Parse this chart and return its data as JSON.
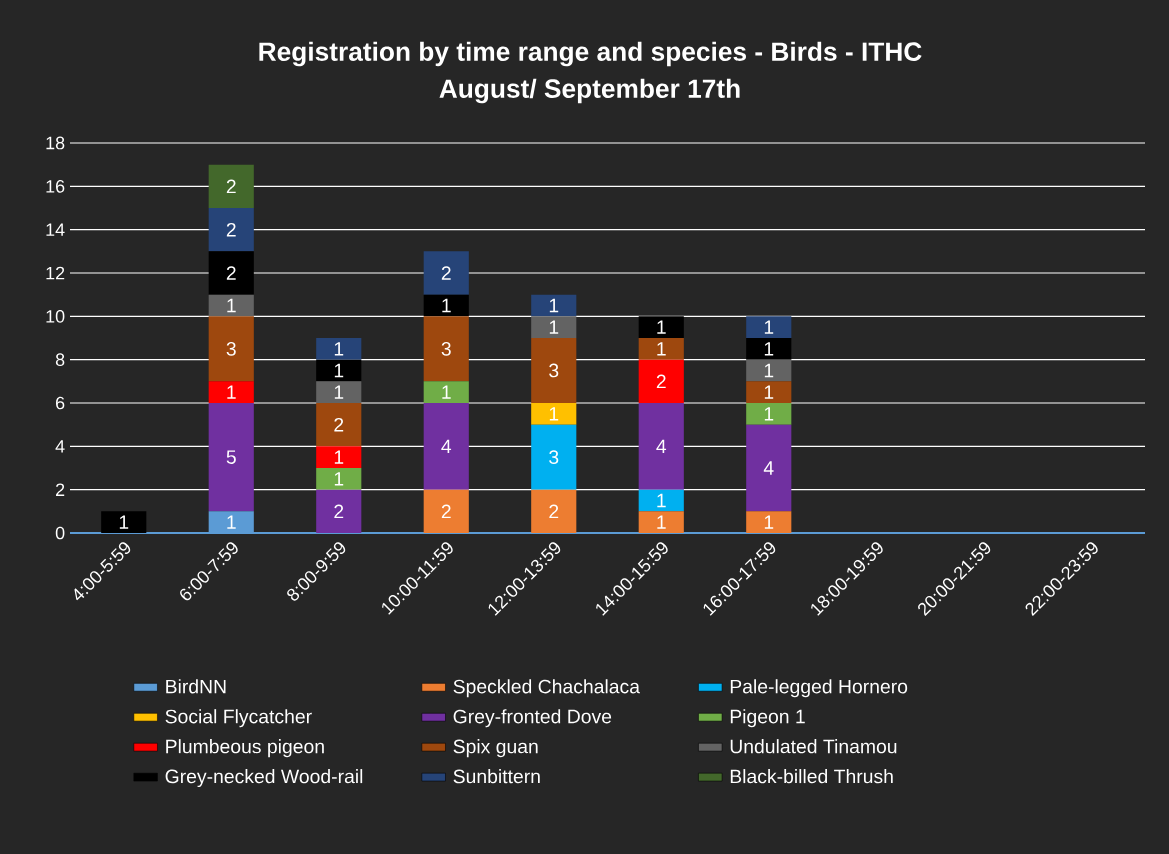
{
  "chart_data": {
    "type": "bar",
    "stacked": true,
    "title": "Registration by time range and species - Birds - ITHC",
    "subtitle": "August/ September 17th",
    "categories": [
      "4:00-5:59",
      "6:00-7:59",
      "8:00-9:59",
      "10:00-11:59",
      "12:00-13:59",
      "14:00-15:59",
      "16:00-17:59",
      "18:00-19:59",
      "20:00-21:59",
      "22:00-23:59"
    ],
    "series": [
      {
        "name": "BirdNN",
        "color": "#5b9bd5",
        "values": [
          null,
          1,
          null,
          null,
          null,
          null,
          null,
          null,
          null,
          null
        ]
      },
      {
        "name": "Speckled Chachalaca",
        "color": "#ed7d31",
        "values": [
          null,
          null,
          null,
          2,
          2,
          1,
          1,
          null,
          null,
          null
        ]
      },
      {
        "name": "Pale-legged Hornero",
        "color": "#00b0f0",
        "values": [
          null,
          null,
          null,
          null,
          3,
          1,
          null,
          null,
          null,
          null
        ]
      },
      {
        "name": "Social Flycatcher",
        "color": "#ffc000",
        "values": [
          null,
          null,
          null,
          null,
          1,
          null,
          null,
          null,
          null,
          null
        ]
      },
      {
        "name": "Grey-fronted Dove",
        "color": "#7030a0",
        "values": [
          null,
          5,
          2,
          4,
          null,
          4,
          4,
          null,
          null,
          null
        ]
      },
      {
        "name": "Pigeon 1",
        "color": "#70ad47",
        "values": [
          null,
          null,
          1,
          1,
          null,
          null,
          1,
          null,
          null,
          null
        ]
      },
      {
        "name": "Plumbeous pigeon",
        "color": "#ff0000",
        "values": [
          null,
          1,
          1,
          null,
          null,
          2,
          null,
          null,
          null,
          null
        ]
      },
      {
        "name": "Spix guan",
        "color": "#9e480e",
        "values": [
          null,
          3,
          2,
          3,
          3,
          1,
          1,
          null,
          null,
          null
        ]
      },
      {
        "name": "Undulated Tinamou",
        "color": "#636363",
        "values": [
          null,
          1,
          1,
          null,
          1,
          null,
          1,
          null,
          null,
          null
        ]
      },
      {
        "name": "Grey-necked Wood-rail",
        "color": "#000000",
        "values": [
          1,
          2,
          1,
          1,
          null,
          1,
          1,
          null,
          null,
          null
        ]
      },
      {
        "name": "Sunbittern",
        "color": "#264478",
        "values": [
          null,
          2,
          1,
          2,
          1,
          null,
          1,
          null,
          null,
          null
        ]
      },
      {
        "name": "Black-billed Thrush",
        "color": "#43682b",
        "values": [
          null,
          2,
          null,
          null,
          null,
          null,
          null,
          null,
          null,
          null
        ]
      }
    ],
    "ylim": [
      0,
      18
    ],
    "yticks": [
      0,
      2,
      4,
      6,
      8,
      10,
      12,
      14,
      16,
      18
    ],
    "grid": "y",
    "legend": "bottom",
    "data_labels": true
  }
}
